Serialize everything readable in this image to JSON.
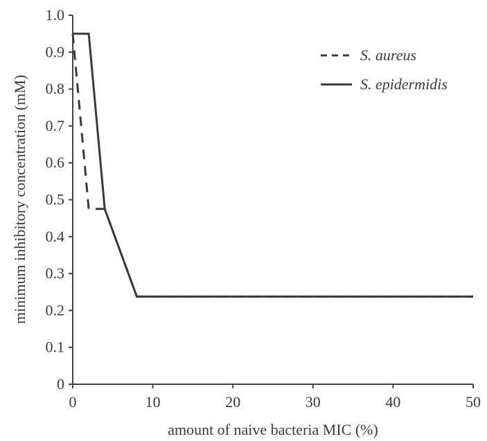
{
  "chart_data": {
    "type": "line",
    "title": "",
    "xlabel": "amount of naive bacteria MIC (%)",
    "ylabel": "minimum inhibitory concentration (mM)",
    "xlim": [
      0,
      50
    ],
    "ylim": [
      0,
      1.0
    ],
    "x_ticks": [
      "0",
      "10",
      "20",
      "30",
      "40",
      "50"
    ],
    "y_ticks": [
      "0",
      "0.1",
      "0.2",
      "0.3",
      "0.4",
      "0.5",
      "0.6",
      "0.7",
      "0.8",
      "0.9",
      "1.0"
    ],
    "grid": false,
    "legend_position": "top-right",
    "series": [
      {
        "name": "S. aureus",
        "style": "dashed",
        "color": "#3a3a3a",
        "x": [
          0,
          2,
          4,
          8,
          50
        ],
        "y": [
          0.95,
          0.475,
          0.475,
          0.2375,
          0.2375
        ]
      },
      {
        "name": "S. epidermidis",
        "style": "solid",
        "color": "#3a3a3a",
        "x": [
          0,
          2,
          4,
          8,
          50
        ],
        "y": [
          0.95,
          0.95,
          0.475,
          0.2375,
          0.2375
        ]
      }
    ]
  }
}
